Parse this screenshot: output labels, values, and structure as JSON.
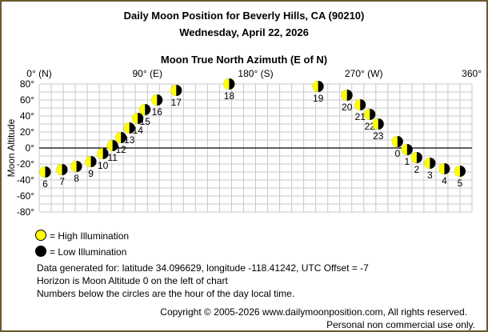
{
  "title": "Daily Moon Position for Beverly Hills, CA (90210)",
  "subtitle": "Wednesday, April 22, 2026",
  "legend": {
    "high": {
      "label": "= High Illumination",
      "color": "#ffff00"
    },
    "low": {
      "label": "= Low Illumination",
      "color": "#000000"
    }
  },
  "notes": [
    "Data generated for: latitude 34.096629, longitude -118.41242, UTC Offset = -7",
    "Horizon is Moon Altitude 0 on the left of chart",
    "Numbers below the circles are the hour of the day local time."
  ],
  "copyright": "Copyright © 2005-2026 www.dailymoonposition.com, All rights reserved.",
  "usage": "Personal non commercial use only.",
  "chart_data": {
    "type": "scatter",
    "xlabel": "Moon True North Azimuth (E of N)",
    "ylabel": "Moon Altitude",
    "xlim": [
      0,
      360
    ],
    "ylim": [
      -80,
      80
    ],
    "grid": true,
    "x_ticks": [
      {
        "value": 0,
        "label": "0° (N)"
      },
      {
        "value": 90,
        "label": "90° (E)"
      },
      {
        "value": 180,
        "label": "180° (S)"
      },
      {
        "value": 270,
        "label": "270° (W)"
      },
      {
        "value": 360,
        "label": "360°"
      }
    ],
    "y_ticks": [
      {
        "value": 80,
        "label": "80°"
      },
      {
        "value": 60,
        "label": "60°"
      },
      {
        "value": 40,
        "label": "40°"
      },
      {
        "value": 20,
        "label": "20°"
      },
      {
        "value": 0,
        "label": "0°"
      },
      {
        "value": -20,
        "label": "-20°"
      },
      {
        "value": -40,
        "label": "-40°"
      },
      {
        "value": -60,
        "label": "-60°"
      },
      {
        "value": -80,
        "label": "-80°"
      }
    ],
    "horizon_altitude": 0,
    "points": [
      {
        "hour": "0",
        "azimuth": 298,
        "altitude": 8
      },
      {
        "hour": "1",
        "azimuth": 306,
        "altitude": -2
      },
      {
        "hour": "2",
        "azimuth": 314,
        "altitude": -12
      },
      {
        "hour": "3",
        "azimuth": 325,
        "altitude": -19
      },
      {
        "hour": "4",
        "azimuth": 337,
        "altitude": -26
      },
      {
        "hour": "5",
        "azimuth": 350,
        "altitude": -29
      },
      {
        "hour": "6",
        "azimuth": 5,
        "altitude": -30
      },
      {
        "hour": "7",
        "azimuth": 19,
        "altitude": -27
      },
      {
        "hour": "8",
        "azimuth": 31,
        "altitude": -23
      },
      {
        "hour": "9",
        "azimuth": 43,
        "altitude": -17
      },
      {
        "hour": "10",
        "azimuth": 53,
        "altitude": -7
      },
      {
        "hour": "11",
        "azimuth": 61,
        "altitude": 3
      },
      {
        "hour": "12",
        "azimuth": 68,
        "altitude": 13
      },
      {
        "hour": "13",
        "azimuth": 75,
        "altitude": 25
      },
      {
        "hour": "14",
        "azimuth": 82,
        "altitude": 37
      },
      {
        "hour": "15",
        "azimuth": 88,
        "altitude": 48
      },
      {
        "hour": "16",
        "azimuth": 98,
        "altitude": 60
      },
      {
        "hour": "17",
        "azimuth": 114,
        "altitude": 72
      },
      {
        "hour": "18",
        "azimuth": 158,
        "altitude": 80
      },
      {
        "hour": "19",
        "azimuth": 232,
        "altitude": 77
      },
      {
        "hour": "20",
        "azimuth": 256,
        "altitude": 66
      },
      {
        "hour": "21",
        "azimuth": 267,
        "altitude": 54
      },
      {
        "hour": "22",
        "azimuth": 275,
        "altitude": 42
      },
      {
        "hour": "23",
        "azimuth": 282,
        "altitude": 30
      }
    ],
    "marker": {
      "lit_color": "#ffff00",
      "dark_color": "#000000"
    }
  }
}
